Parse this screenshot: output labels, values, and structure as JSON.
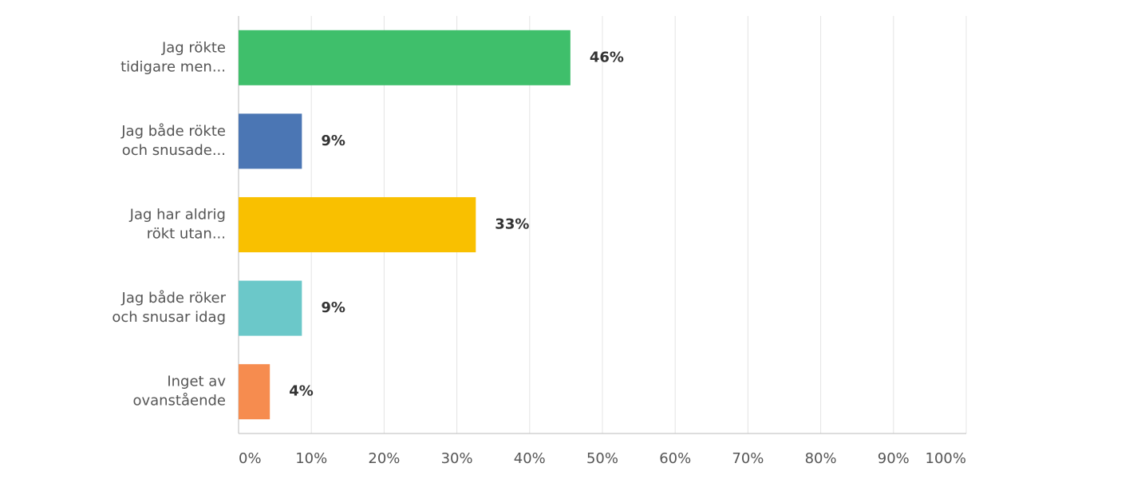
{
  "chart_data": {
    "type": "bar",
    "orientation": "horizontal",
    "categories": [
      [
        "Jag rökte",
        "tidigare men..."
      ],
      [
        "Jag både rökte",
        "och snusade..."
      ],
      [
        "Jag har aldrig",
        "rökt utan..."
      ],
      [
        "Jag både röker",
        "och snusar idag"
      ],
      [
        "Inget av",
        "ovanstående"
      ]
    ],
    "values": [
      45.6,
      8.7,
      32.6,
      8.7,
      4.3
    ],
    "value_labels": [
      "46%",
      "9%",
      "33%",
      "9%",
      "4%"
    ],
    "colors": [
      "#3fbf6b",
      "#4b76b4",
      "#f9c000",
      "#6bc8c9",
      "#f68c4f"
    ],
    "xlim": [
      0,
      100
    ],
    "xticks": [
      {
        "value": 0,
        "label": "0%"
      },
      {
        "value": 10,
        "label": "10%"
      },
      {
        "value": 20,
        "label": "20%"
      },
      {
        "value": 30,
        "label": "30%"
      },
      {
        "value": 40,
        "label": "40%"
      },
      {
        "value": 50,
        "label": "50%"
      },
      {
        "value": 60,
        "label": "60%"
      },
      {
        "value": 70,
        "label": "70%"
      },
      {
        "value": 80,
        "label": "80%"
      },
      {
        "value": 90,
        "label": "90%"
      },
      {
        "value": 100,
        "label": "100%"
      }
    ],
    "grid": true
  }
}
